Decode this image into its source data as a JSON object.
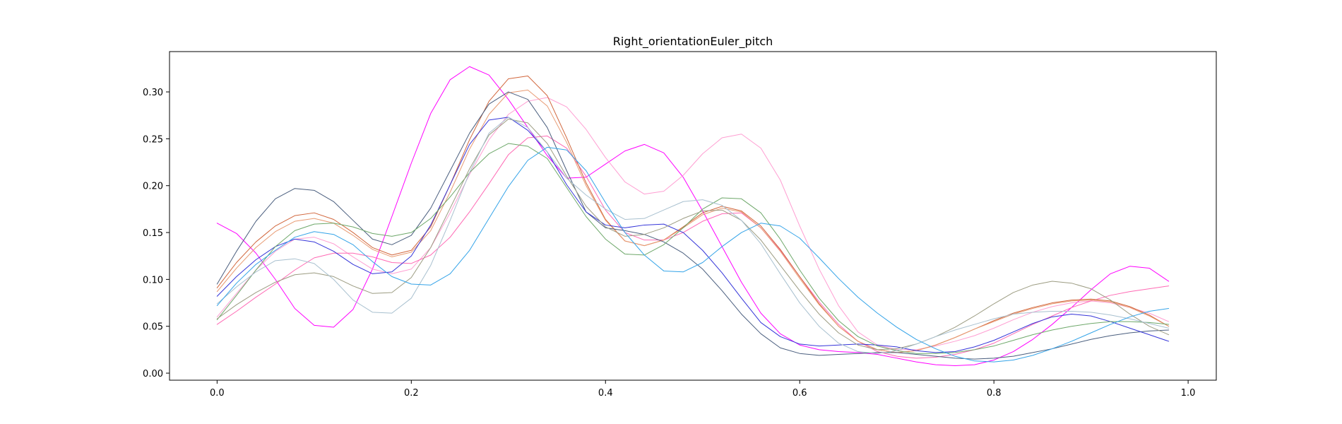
{
  "chart_data": {
    "type": "line",
    "title": "Right_orientationEuler_pitch",
    "xlabel": "",
    "ylabel": "",
    "xlim": [
      -0.049,
      1.029
    ],
    "ylim": [
      -0.0075,
      0.343
    ],
    "xticks": [
      0.0,
      0.2,
      0.4,
      0.6,
      0.8,
      1.0
    ],
    "xtick_labels": [
      "0.0",
      "0.2",
      "0.4",
      "0.6",
      "0.8",
      "1.0"
    ],
    "yticks": [
      0.0,
      0.05,
      0.1,
      0.15,
      0.2,
      0.25,
      0.3
    ],
    "ytick_labels": [
      "0.00",
      "0.05",
      "0.10",
      "0.15",
      "0.20",
      "0.25",
      "0.30"
    ],
    "grid": false,
    "legend": "none",
    "x": [
      0.0,
      0.02,
      0.04,
      0.06,
      0.08,
      0.1,
      0.12,
      0.14,
      0.16,
      0.18,
      0.2,
      0.22,
      0.24,
      0.26,
      0.28,
      0.3,
      0.32,
      0.34,
      0.36,
      0.38,
      0.4,
      0.42,
      0.44,
      0.46,
      0.48,
      0.5,
      0.52,
      0.54,
      0.56,
      0.58,
      0.6,
      0.62,
      0.64,
      0.66,
      0.68,
      0.7,
      0.72,
      0.74,
      0.76,
      0.78,
      0.8,
      0.82,
      0.84,
      0.86,
      0.88,
      0.9,
      0.92,
      0.94,
      0.96,
      0.98
    ],
    "series": [
      {
        "color": "#ff00ff",
        "values": [
          0.16,
          0.149,
          0.128,
          0.1,
          0.069,
          0.051,
          0.049,
          0.068,
          0.111,
          0.167,
          0.224,
          0.277,
          0.313,
          0.327,
          0.318,
          0.292,
          0.262,
          0.232,
          0.208,
          0.209,
          0.223,
          0.237,
          0.244,
          0.235,
          0.209,
          0.173,
          0.135,
          0.097,
          0.064,
          0.042,
          0.03,
          0.025,
          0.023,
          0.022,
          0.02,
          0.016,
          0.012,
          0.009,
          0.008,
          0.009,
          0.014,
          0.023,
          0.036,
          0.052,
          0.07,
          0.089,
          0.106,
          0.114,
          0.112,
          0.098
        ]
      },
      {
        "color": "#ff9ed2",
        "values": [
          0.06,
          0.085,
          0.11,
          0.13,
          0.143,
          0.145,
          0.138,
          0.124,
          0.111,
          0.106,
          0.111,
          0.134,
          0.171,
          0.212,
          0.249,
          0.276,
          0.29,
          0.294,
          0.284,
          0.26,
          0.23,
          0.204,
          0.191,
          0.194,
          0.211,
          0.234,
          0.251,
          0.255,
          0.24,
          0.206,
          0.157,
          0.111,
          0.072,
          0.044,
          0.03,
          0.025,
          0.025,
          0.029,
          0.034,
          0.04,
          0.048,
          0.057,
          0.065,
          0.071,
          0.075,
          0.077,
          0.075,
          0.07,
          0.064,
          0.055
        ]
      },
      {
        "color": "#ff69b4",
        "values": [
          0.052,
          0.066,
          0.081,
          0.095,
          0.11,
          0.123,
          0.128,
          0.128,
          0.124,
          0.118,
          0.117,
          0.126,
          0.145,
          0.172,
          0.202,
          0.233,
          0.251,
          0.253,
          0.24,
          0.21,
          0.174,
          0.15,
          0.142,
          0.142,
          0.15,
          0.162,
          0.17,
          0.171,
          0.155,
          0.131,
          0.103,
          0.076,
          0.052,
          0.034,
          0.023,
          0.018,
          0.016,
          0.017,
          0.02,
          0.025,
          0.032,
          0.042,
          0.052,
          0.061,
          0.07,
          0.077,
          0.083,
          0.087,
          0.09,
          0.093
        ]
      },
      {
        "color": "#d1663c",
        "values": [
          0.091,
          0.118,
          0.14,
          0.157,
          0.168,
          0.171,
          0.164,
          0.15,
          0.134,
          0.126,
          0.131,
          0.156,
          0.201,
          0.249,
          0.29,
          0.314,
          0.317,
          0.296,
          0.251,
          0.203,
          0.164,
          0.141,
          0.136,
          0.142,
          0.156,
          0.171,
          0.178,
          0.173,
          0.157,
          0.132,
          0.103,
          0.074,
          0.05,
          0.034,
          0.025,
          0.022,
          0.024,
          0.03,
          0.038,
          0.047,
          0.056,
          0.064,
          0.07,
          0.075,
          0.078,
          0.079,
          0.077,
          0.071,
          0.062,
          0.05
        ]
      },
      {
        "color": "#e89a72",
        "values": [
          0.087,
          0.112,
          0.134,
          0.151,
          0.162,
          0.165,
          0.16,
          0.147,
          0.132,
          0.124,
          0.129,
          0.152,
          0.193,
          0.239,
          0.276,
          0.299,
          0.302,
          0.285,
          0.246,
          0.2,
          0.163,
          0.141,
          0.136,
          0.142,
          0.155,
          0.169,
          0.176,
          0.172,
          0.155,
          0.13,
          0.101,
          0.073,
          0.05,
          0.034,
          0.025,
          0.022,
          0.024,
          0.03,
          0.038,
          0.047,
          0.055,
          0.063,
          0.069,
          0.074,
          0.077,
          0.078,
          0.076,
          0.07,
          0.061,
          0.05
        ]
      },
      {
        "color": "#4a5e7e",
        "values": [
          0.095,
          0.13,
          0.162,
          0.186,
          0.197,
          0.195,
          0.183,
          0.163,
          0.143,
          0.137,
          0.147,
          0.176,
          0.216,
          0.256,
          0.287,
          0.3,
          0.292,
          0.262,
          0.216,
          0.172,
          0.155,
          0.152,
          0.148,
          0.14,
          0.128,
          0.111,
          0.088,
          0.063,
          0.042,
          0.027,
          0.021,
          0.019,
          0.02,
          0.021,
          0.022,
          0.022,
          0.02,
          0.018,
          0.016,
          0.015,
          0.016,
          0.018,
          0.022,
          0.026,
          0.031,
          0.036,
          0.04,
          0.043,
          0.045,
          0.046
        ]
      },
      {
        "color": "#3535d9",
        "values": [
          0.082,
          0.103,
          0.121,
          0.135,
          0.143,
          0.14,
          0.13,
          0.116,
          0.106,
          0.108,
          0.125,
          0.158,
          0.201,
          0.244,
          0.27,
          0.273,
          0.259,
          0.236,
          0.201,
          0.172,
          0.158,
          0.155,
          0.158,
          0.159,
          0.15,
          0.131,
          0.107,
          0.08,
          0.054,
          0.039,
          0.031,
          0.029,
          0.03,
          0.031,
          0.03,
          0.028,
          0.024,
          0.022,
          0.023,
          0.028,
          0.035,
          0.044,
          0.053,
          0.06,
          0.063,
          0.061,
          0.055,
          0.048,
          0.041,
          0.034
        ]
      },
      {
        "color": "#6ea86a",
        "values": [
          0.057,
          0.083,
          0.11,
          0.135,
          0.152,
          0.159,
          0.16,
          0.156,
          0.149,
          0.146,
          0.15,
          0.165,
          0.188,
          0.214,
          0.234,
          0.245,
          0.242,
          0.229,
          0.198,
          0.167,
          0.143,
          0.127,
          0.126,
          0.137,
          0.155,
          0.175,
          0.187,
          0.186,
          0.171,
          0.143,
          0.11,
          0.08,
          0.056,
          0.039,
          0.029,
          0.024,
          0.021,
          0.021,
          0.022,
          0.025,
          0.029,
          0.035,
          0.041,
          0.046,
          0.05,
          0.053,
          0.055,
          0.055,
          0.054,
          0.052
        ]
      },
      {
        "color": "#9c9c82",
        "values": [
          0.058,
          0.073,
          0.086,
          0.097,
          0.105,
          0.107,
          0.103,
          0.093,
          0.085,
          0.086,
          0.102,
          0.134,
          0.176,
          0.218,
          0.254,
          0.271,
          0.267,
          0.245,
          0.21,
          0.178,
          0.156,
          0.146,
          0.148,
          0.155,
          0.165,
          0.173,
          0.174,
          0.163,
          0.142,
          0.115,
          0.088,
          0.063,
          0.043,
          0.03,
          0.025,
          0.026,
          0.031,
          0.039,
          0.049,
          0.061,
          0.074,
          0.086,
          0.094,
          0.098,
          0.096,
          0.09,
          0.078,
          0.063,
          0.05,
          0.041
        ]
      },
      {
        "color": "#a8c0cf",
        "values": [
          0.074,
          0.092,
          0.108,
          0.12,
          0.122,
          0.117,
          0.1,
          0.078,
          0.065,
          0.064,
          0.08,
          0.115,
          0.163,
          0.214,
          0.256,
          0.273,
          0.262,
          0.236,
          0.208,
          0.19,
          0.175,
          0.164,
          0.165,
          0.174,
          0.183,
          0.185,
          0.179,
          0.163,
          0.138,
          0.106,
          0.075,
          0.05,
          0.032,
          0.023,
          0.021,
          0.024,
          0.031,
          0.039,
          0.046,
          0.052,
          0.058,
          0.063,
          0.065,
          0.066,
          0.066,
          0.065,
          0.062,
          0.058,
          0.053,
          0.048
        ]
      },
      {
        "color": "#33a3e8",
        "values": [
          0.072,
          0.096,
          0.116,
          0.131,
          0.145,
          0.151,
          0.148,
          0.137,
          0.119,
          0.103,
          0.095,
          0.094,
          0.106,
          0.131,
          0.165,
          0.199,
          0.227,
          0.241,
          0.238,
          0.216,
          0.182,
          0.15,
          0.126,
          0.109,
          0.108,
          0.118,
          0.135,
          0.15,
          0.16,
          0.157,
          0.144,
          0.123,
          0.101,
          0.081,
          0.064,
          0.049,
          0.036,
          0.026,
          0.018,
          0.013,
          0.012,
          0.014,
          0.019,
          0.026,
          0.034,
          0.043,
          0.052,
          0.06,
          0.066,
          0.069
        ]
      }
    ]
  }
}
